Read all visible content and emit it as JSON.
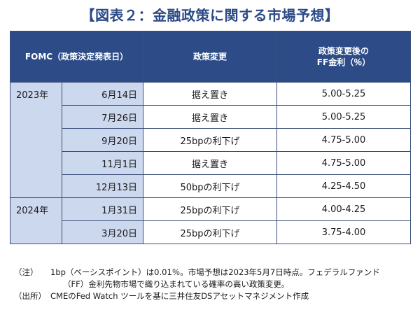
{
  "title": "【図表２：金融政策に関する市場予想】",
  "table": {
    "headers": {
      "fomc": "FOMC（政策決定発表日）",
      "policy": "政策変更",
      "rate_line1": "政策変更後の",
      "rate_line2": "FF金利（％）"
    },
    "groups": [
      {
        "year": "2023年",
        "rows": [
          {
            "date": "6月14日",
            "policy": "据え置き",
            "rate": "5.00-5.25"
          },
          {
            "date": "7月26日",
            "policy": "据え置き",
            "rate": "5.00-5.25"
          },
          {
            "date": "9月20日",
            "policy": "25bpの利下げ",
            "rate": "4.75-5.00"
          },
          {
            "date": "11月1日",
            "policy": "据え置き",
            "rate": "4.75-5.00"
          },
          {
            "date": "12月13日",
            "policy": "50bpの利下げ",
            "rate": "4.25-4.50"
          }
        ]
      },
      {
        "year": "2024年",
        "rows": [
          {
            "date": "1月31日",
            "policy": "25bpの利下げ",
            "rate": "4.00-4.25"
          },
          {
            "date": "3月20日",
            "policy": "25bpの利下げ",
            "rate": "3.75-4.00"
          }
        ]
      }
    ]
  },
  "notes": {
    "note_label": "（注）",
    "note_line1": "1bp（ベーシスポイント）は0.01％。市場予想は2023年5月7日時点。フェデラルファンド",
    "note_line2": "（FF）金利先物市場で織り込まれている確率の高い政策変更。",
    "source_label": "（出所）",
    "source_text": "CMEのFed Watch ツールを基に三井住友DSアセットマネジメント作成"
  },
  "colors": {
    "title": "#2b4a86",
    "header_bg": "#2c4b87",
    "label_bg": "#ccd8ee",
    "border": "#3d4f7a"
  }
}
